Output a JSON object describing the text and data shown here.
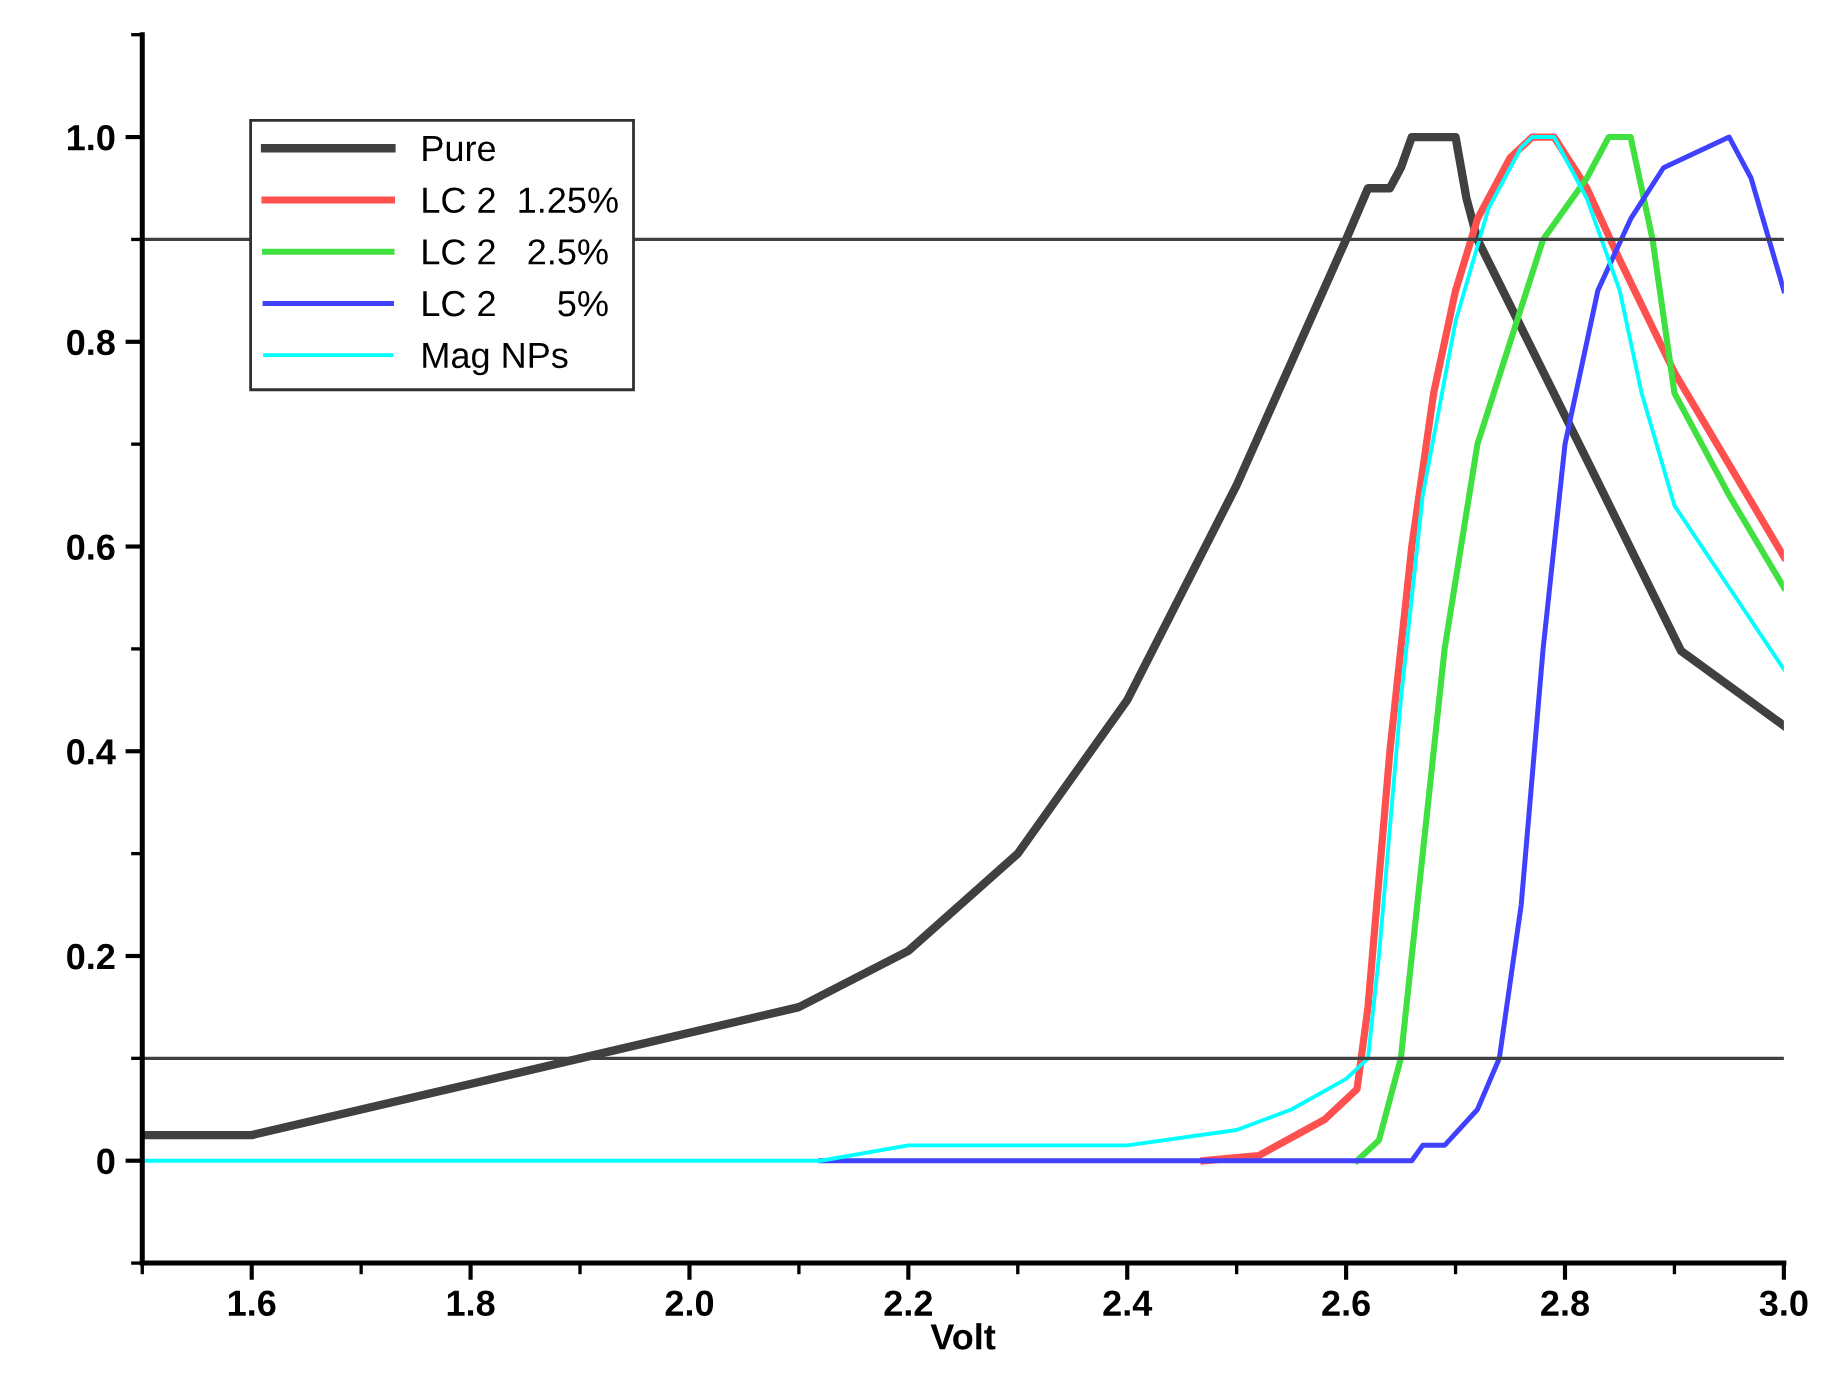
{
  "chart_data": {
    "type": "line",
    "xlabel": "Volt",
    "xlim": [
      1.5,
      3.0
    ],
    "xticks": [
      1.6,
      1.8,
      {
        "value": 2.0,
        "label": "2.0"
      },
      2.2,
      2.4,
      2.6,
      2.8,
      {
        "value": 3.0,
        "label": "3.0"
      }
    ],
    "ylim": [
      -0.1,
      1.1
    ],
    "yticks": [
      0,
      0.2,
      0.4,
      0.6,
      0.8,
      {
        "value": 1.0,
        "label": "1.0"
      }
    ],
    "grid": false,
    "legend": "top left",
    "marker": "none",
    "line_style": "solid",
    "ref_lines": [
      {
        "axis": "y",
        "value": 0.9,
        "color": "#404040"
      },
      {
        "axis": "y",
        "value": 0.1,
        "color": "#404040"
      }
    ],
    "series": [
      {
        "name": "Pure",
        "color": "#404040",
        "x": [
          1.5,
          1.6,
          1.9,
          2.1,
          2.2,
          2.3,
          2.4,
          2.5,
          2.6,
          2.62,
          2.64,
          2.65,
          2.66,
          2.7,
          2.71,
          2.72,
          2.825,
          2.906,
          3.0
        ],
        "values": [
          0.025,
          0.025,
          0.1,
          0.15,
          0.205,
          0.3,
          0.45,
          0.66,
          0.9,
          0.95,
          0.95,
          0.97,
          1.0,
          1.0,
          0.94,
          0.9,
          0.674,
          0.498,
          0.425
        ]
      },
      {
        "name": "LC 2  1.25%",
        "color": "#ff5050",
        "x": [
          2.47,
          2.52,
          2.58,
          2.61,
          2.62,
          2.64,
          2.66,
          2.68,
          2.7,
          2.72,
          2.75,
          2.77,
          2.79,
          2.82,
          2.85,
          2.9,
          2.95,
          3.0
        ],
        "values": [
          0,
          0.005,
          0.04,
          0.07,
          0.15,
          0.4,
          0.6,
          0.75,
          0.85,
          0.92,
          0.98,
          1.0,
          1.0,
          0.95,
          0.88,
          0.77,
          0.68,
          0.59
        ]
      },
      {
        "name": "LC 2   2.5%",
        "color": "#40e040",
        "x": [
          2.61,
          2.63,
          2.65,
          2.67,
          2.69,
          2.72,
          2.75,
          2.78,
          2.82,
          2.84,
          2.86,
          2.88,
          2.9,
          2.95,
          3.0
        ],
        "values": [
          0,
          0.02,
          0.1,
          0.3,
          0.5,
          0.7,
          0.8,
          0.9,
          0.96,
          1.0,
          1.0,
          0.9,
          0.75,
          0.65,
          0.56
        ]
      },
      {
        "name": "LC 2      5%",
        "color": "#4040ff",
        "x": [
          2.12,
          2.66,
          2.67,
          2.69,
          2.72,
          2.74,
          2.76,
          2.78,
          2.8,
          2.83,
          2.86,
          2.89,
          2.93,
          2.95,
          2.97,
          3.0
        ],
        "values": [
          0,
          0,
          0.015,
          0.015,
          0.05,
          0.1,
          0.25,
          0.5,
          0.7,
          0.85,
          0.92,
          0.97,
          0.99,
          1.0,
          0.96,
          0.85
        ]
      },
      {
        "name": "Mag NPs",
        "color": "#00ffff",
        "x": [
          1.5,
          2.12,
          2.2,
          2.4,
          2.5,
          2.55,
          2.6,
          2.62,
          2.63,
          2.65,
          2.67,
          2.7,
          2.73,
          2.76,
          2.77,
          2.79,
          2.82,
          2.85,
          2.87,
          2.9,
          2.95,
          3.0
        ],
        "values": [
          0,
          0,
          0.015,
          0.015,
          0.03,
          0.05,
          0.08,
          0.1,
          0.2,
          0.45,
          0.65,
          0.82,
          0.93,
          0.99,
          1.0,
          1.0,
          0.94,
          0.85,
          0.75,
          0.64,
          0.56,
          0.48
        ]
      }
    ]
  }
}
